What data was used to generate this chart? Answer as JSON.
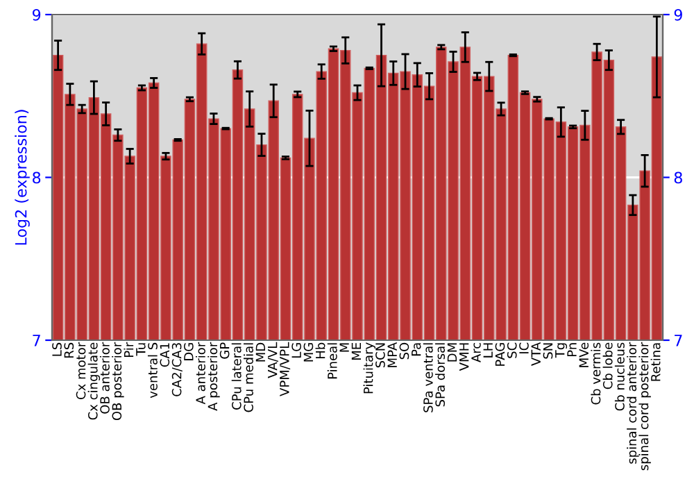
{
  "chart_data": {
    "type": "bar",
    "ylabel": "Log2 (expression)",
    "categories": [
      "LS",
      "RS",
      "Cx motor",
      "Cx cingulate",
      "OB anterior",
      "OB posterior",
      "Pir",
      "Tu",
      "ventral S",
      "CA1",
      "CA2/CA3",
      "DG",
      "A anterior",
      "A posterior",
      "GP",
      "CPu lateral",
      "CPu medial",
      "MD",
      "VA/VL",
      "VPM/VPL",
      "LG",
      "MG",
      "Hb",
      "Pineal",
      "M",
      "ME",
      "Pituitary",
      "SCN",
      "MPA",
      "SO",
      "Pa",
      "SPa ventral",
      "SPa dorsal",
      "DM",
      "VMH",
      "Arc",
      "LH",
      "PAG",
      "SC",
      "IC",
      "VTA",
      "SN",
      "Tg",
      "Pn",
      "MVe",
      "Cb vermis",
      "Cb lobe",
      "Cb nucleus",
      "spinal cord anterior",
      "spinal cord posterior",
      "Retina"
    ],
    "values": [
      8.75,
      8.51,
      8.42,
      8.49,
      8.39,
      8.26,
      8.13,
      8.55,
      8.58,
      8.13,
      8.23,
      8.48,
      8.82,
      8.36,
      8.3,
      8.66,
      8.42,
      8.2,
      8.47,
      8.12,
      8.51,
      8.24,
      8.65,
      8.79,
      8.78,
      8.52,
      8.67,
      8.75,
      8.64,
      8.65,
      8.63,
      8.56,
      8.8,
      8.71,
      8.8,
      8.62,
      8.62,
      8.42,
      8.75,
      8.52,
      8.48,
      8.36,
      8.34,
      8.31,
      8.32,
      8.77,
      8.72,
      8.31,
      7.83,
      8.04,
      8.74
    ],
    "errors": [
      0.09,
      0.065,
      0.025,
      0.1,
      0.07,
      0.035,
      0.045,
      0.015,
      0.03,
      0.02,
      0.005,
      0.012,
      0.065,
      0.032,
      0.004,
      0.053,
      0.108,
      0.068,
      0.1,
      0.008,
      0.017,
      0.17,
      0.044,
      0.014,
      0.08,
      0.045,
      0.005,
      0.19,
      0.072,
      0.107,
      0.072,
      0.08,
      0.013,
      0.062,
      0.091,
      0.022,
      0.089,
      0.039,
      0.005,
      0.008,
      0.014,
      0.004,
      0.09,
      0.008,
      0.089,
      0.05,
      0.06,
      0.043,
      0.061,
      0.097,
      0.248
    ],
    "color": "#b83333",
    "ylim": [
      7,
      9
    ],
    "yticks": [
      7,
      8,
      9
    ],
    "y2lim": [
      7,
      9
    ],
    "y2ticks": [
      7,
      8,
      9
    ],
    "grid": "y"
  }
}
